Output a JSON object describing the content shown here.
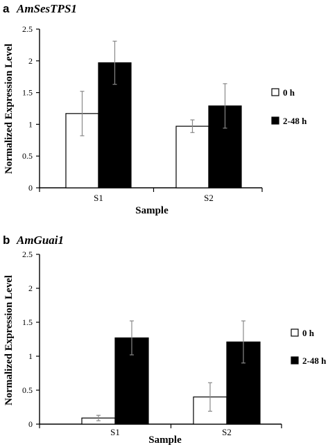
{
  "chart_data": [
    {
      "panel": "a",
      "type": "bar",
      "title": "AmSesTPS1",
      "xlabel": "Sample",
      "ylabel": "Normalized Expression Level",
      "categories": [
        "S1",
        "S2"
      ],
      "ylim": [
        0,
        2.5
      ],
      "yticks": [
        "0",
        "0.5",
        "1",
        "1.5",
        "2",
        "2.5"
      ],
      "legend_position": "right",
      "grid": false,
      "series": [
        {
          "name": "0 h",
          "color": "#ffffff",
          "values": [
            1.17,
            0.97
          ],
          "errors": [
            0.35,
            0.1
          ]
        },
        {
          "name": "2-48 h",
          "color": "#000000",
          "values": [
            1.97,
            1.29
          ],
          "errors": [
            0.34,
            0.35
          ]
        }
      ]
    },
    {
      "panel": "b",
      "type": "bar",
      "title": "AmGuai1",
      "xlabel": "Sample",
      "ylabel": "Normalized Expression Level",
      "categories": [
        "S1",
        "S2"
      ],
      "ylim": [
        0,
        2.5
      ],
      "yticks": [
        "0",
        "0.5",
        "1",
        "1.5",
        "2",
        "2.5"
      ],
      "legend_position": "right",
      "grid": false,
      "series": [
        {
          "name": "0 h",
          "color": "#ffffff",
          "values": [
            0.09,
            0.4
          ],
          "errors": [
            0.04,
            0.21
          ]
        },
        {
          "name": "2-48 h",
          "color": "#000000",
          "values": [
            1.27,
            1.21
          ],
          "errors": [
            0.25,
            0.31
          ]
        }
      ]
    }
  ]
}
